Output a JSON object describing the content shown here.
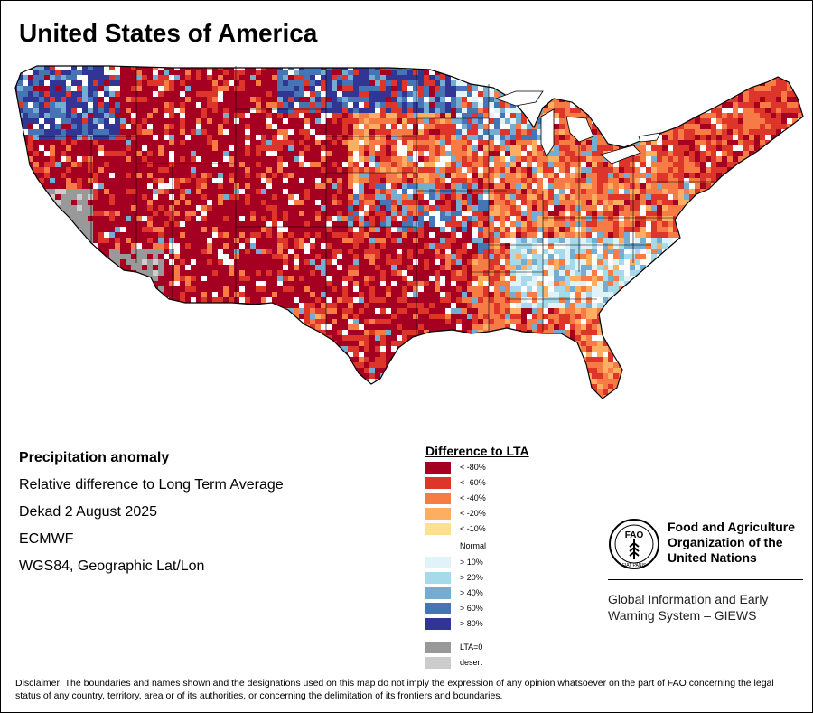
{
  "title": "United States of America",
  "info": {
    "heading": "Precipitation anomaly",
    "line1": "Relative difference to Long Term Average",
    "line2": "Dekad 2 August 2025",
    "line3": "ECMWF",
    "line4": "WGS84, Geographic Lat/Lon"
  },
  "legend": {
    "title": "Difference to LTA",
    "items": [
      {
        "label": "< -80%",
        "color": "#a50021"
      },
      {
        "label": "< -60%",
        "color": "#dd3529"
      },
      {
        "label": "< -40%",
        "color": "#f67b45"
      },
      {
        "label": "< -20%",
        "color": "#fdae61"
      },
      {
        "label": "< -10%",
        "color": "#fee090"
      },
      {
        "label": "> 10%",
        "color": "#e0f3f8"
      },
      {
        "label": "> 20%",
        "color": "#a6d9ea"
      },
      {
        "label": "> 40%",
        "color": "#74add1"
      },
      {
        "label": "> 60%",
        "color": "#4575b4"
      },
      {
        "label": "> 80%",
        "color": "#313695"
      },
      {
        "label": "LTA=0",
        "color": "#999999"
      },
      {
        "label": "desert",
        "color": "#cccccc"
      }
    ],
    "normal_label": "Normal"
  },
  "fao": {
    "name_line1": "Food and Agriculture",
    "name_line2": "Organization of the",
    "name_line3": "United Nations",
    "logo_text": "FAO",
    "logo_motto": "FIAT PANIS"
  },
  "giews": {
    "line1": "Global Information and Early",
    "line2": "Warning System – GIEWS"
  },
  "disclaimer": "Disclaimer: The boundaries and names shown and the designations used on this map do not imply the expression of any opinion whatsoever on the part of FAO concerning the legal status of any country, territory, area or of its authorities, or concerning the delimitation of its frontiers and boundaries."
}
